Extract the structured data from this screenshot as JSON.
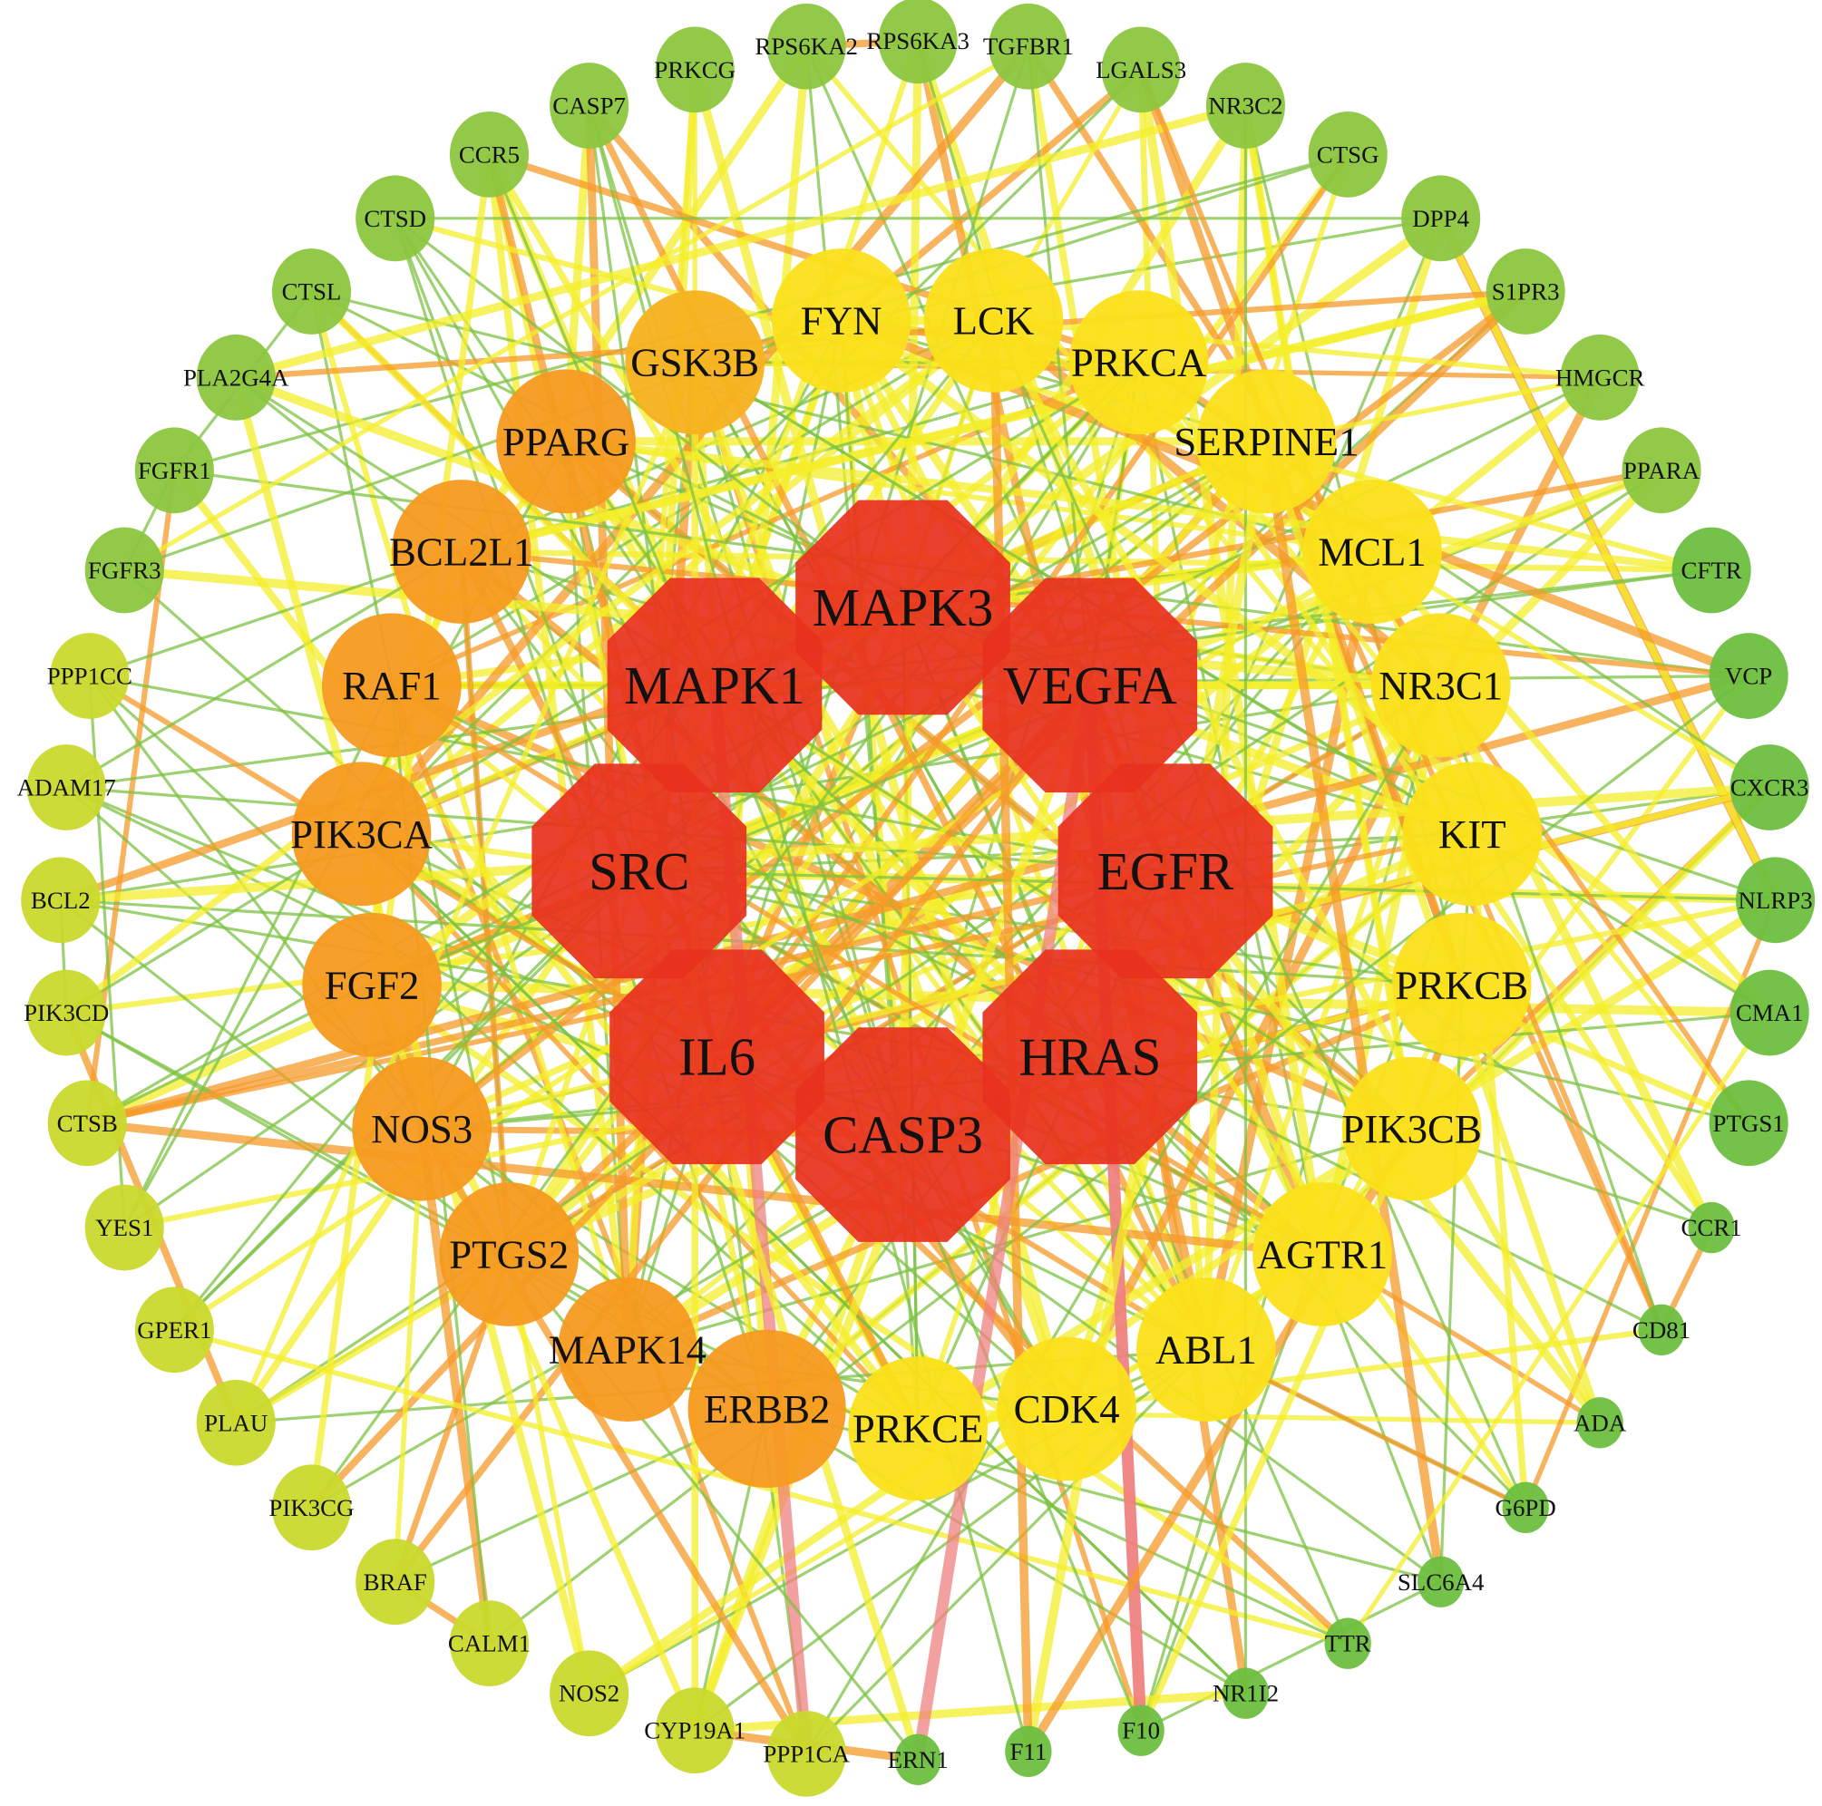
{
  "colors": {
    "hub": "#e8321e",
    "orange": "#f59a1f",
    "orange_light": "#f7b21e",
    "yellow": "#fbe01a",
    "yellow_green": "#c9d92c",
    "green": "#8cc63f",
    "green_small": "#6dbf3f",
    "edge_green": "#7cc242",
    "edge_yellow": "#f4ee2a",
    "edge_orange": "#f59a2a",
    "edge_red": "#ef8080"
  },
  "nodes": [
    {
      "label": "MAPK3",
      "tier": "hub"
    },
    {
      "label": "MAPK1",
      "tier": "hub"
    },
    {
      "label": "VEGFA",
      "tier": "hub"
    },
    {
      "label": "SRC",
      "tier": "hub"
    },
    {
      "label": "EGFR",
      "tier": "hub"
    },
    {
      "label": "IL6",
      "tier": "hub"
    },
    {
      "label": "HRAS",
      "tier": "hub"
    },
    {
      "label": "CASP3",
      "tier": "hub"
    },
    {
      "label": "FYN",
      "tier": "yellow"
    },
    {
      "label": "LCK",
      "tier": "yellow"
    },
    {
      "label": "GSK3B",
      "tier": "orange_light"
    },
    {
      "label": "PRKCA",
      "tier": "yellow"
    },
    {
      "label": "PPARG",
      "tier": "orange"
    },
    {
      "label": "SERPINE1",
      "tier": "yellow"
    },
    {
      "label": "BCL2L1",
      "tier": "orange"
    },
    {
      "label": "MCL1",
      "tier": "yellow"
    },
    {
      "label": "RAF1",
      "tier": "orange"
    },
    {
      "label": "NR3C1",
      "tier": "yellow"
    },
    {
      "label": "PIK3CA",
      "tier": "orange"
    },
    {
      "label": "KIT",
      "tier": "yellow"
    },
    {
      "label": "FGF2",
      "tier": "orange"
    },
    {
      "label": "PRKCB",
      "tier": "yellow"
    },
    {
      "label": "NOS3",
      "tier": "orange"
    },
    {
      "label": "PIK3CB",
      "tier": "yellow"
    },
    {
      "label": "PTGS2",
      "tier": "orange"
    },
    {
      "label": "AGTR1",
      "tier": "yellow"
    },
    {
      "label": "MAPK14",
      "tier": "orange"
    },
    {
      "label": "ABL1",
      "tier": "yellow"
    },
    {
      "label": "ERBB2",
      "tier": "orange"
    },
    {
      "label": "CDK4",
      "tier": "yellow"
    },
    {
      "label": "PRKCE",
      "tier": "yellow"
    },
    {
      "label": "PRKCG",
      "tier": "green"
    },
    {
      "label": "RPS6KA2",
      "tier": "green"
    },
    {
      "label": "RPS6KA3",
      "tier": "green"
    },
    {
      "label": "TGFBR1",
      "tier": "green"
    },
    {
      "label": "LGALS3",
      "tier": "green"
    },
    {
      "label": "CASP7",
      "tier": "green"
    },
    {
      "label": "NR3C2",
      "tier": "green"
    },
    {
      "label": "CCR5",
      "tier": "green"
    },
    {
      "label": "CTSG",
      "tier": "green"
    },
    {
      "label": "CTSD",
      "tier": "green"
    },
    {
      "label": "DPP4",
      "tier": "green"
    },
    {
      "label": "CTSL",
      "tier": "green"
    },
    {
      "label": "S1PR3",
      "tier": "green"
    },
    {
      "label": "PLA2G4A",
      "tier": "green"
    },
    {
      "label": "HMGCR",
      "tier": "green"
    },
    {
      "label": "FGFR1",
      "tier": "green"
    },
    {
      "label": "PPARA",
      "tier": "green"
    },
    {
      "label": "FGFR3",
      "tier": "green"
    },
    {
      "label": "CFTR",
      "tier": "green_small"
    },
    {
      "label": "PPP1CC",
      "tier": "yellow_green"
    },
    {
      "label": "VCP",
      "tier": "green_small"
    },
    {
      "label": "ADAM17",
      "tier": "yellow_green"
    },
    {
      "label": "CXCR3",
      "tier": "green_small"
    },
    {
      "label": "BCL2",
      "tier": "yellow_green"
    },
    {
      "label": "NLRP3",
      "tier": "green_small"
    },
    {
      "label": "PIK3CD",
      "tier": "yellow_green"
    },
    {
      "label": "CMA1",
      "tier": "green_small"
    },
    {
      "label": "CTSB",
      "tier": "yellow_green"
    },
    {
      "label": "PTGS1",
      "tier": "green_small"
    },
    {
      "label": "YES1",
      "tier": "yellow_green"
    },
    {
      "label": "CCR1",
      "tier": "green_small"
    },
    {
      "label": "GPER1",
      "tier": "yellow_green"
    },
    {
      "label": "CD81",
      "tier": "green_small"
    },
    {
      "label": "PLAU",
      "tier": "yellow_green"
    },
    {
      "label": "ADA",
      "tier": "green_small"
    },
    {
      "label": "PIK3CG",
      "tier": "yellow_green"
    },
    {
      "label": "G6PD",
      "tier": "green_small"
    },
    {
      "label": "BRAF",
      "tier": "yellow_green"
    },
    {
      "label": "SLC6A4",
      "tier": "green_small"
    },
    {
      "label": "CALM1",
      "tier": "yellow_green"
    },
    {
      "label": "TTR",
      "tier": "green_small"
    },
    {
      "label": "NOS2",
      "tier": "yellow_green"
    },
    {
      "label": "NR1I2",
      "tier": "green_small"
    },
    {
      "label": "CYP19A1",
      "tier": "yellow_green"
    },
    {
      "label": "F10",
      "tier": "green_small"
    },
    {
      "label": "PPP1CA",
      "tier": "yellow_green"
    },
    {
      "label": "F11",
      "tier": "green_small"
    },
    {
      "label": "ERN1",
      "tier": "green_small"
    }
  ]
}
